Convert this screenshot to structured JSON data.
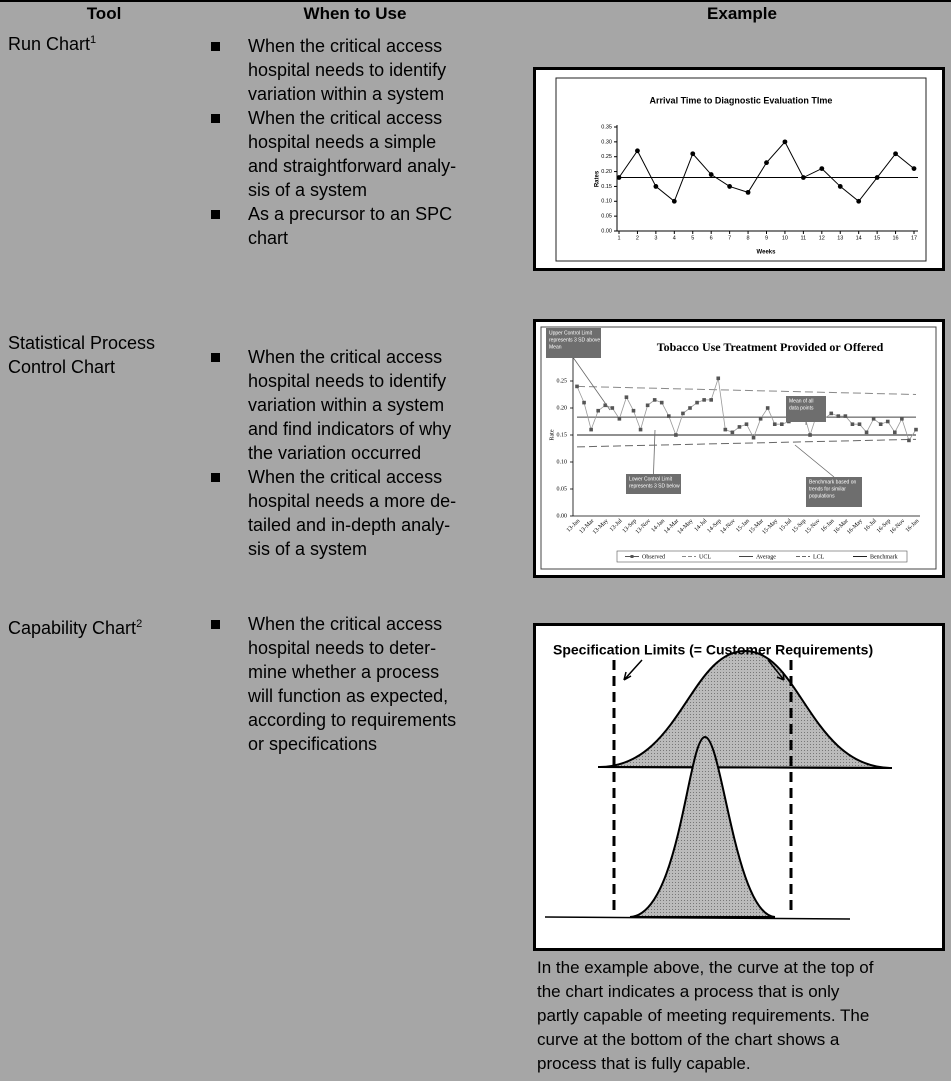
{
  "table": {
    "header": [
      "Tool",
      "When to Use",
      "Example"
    ],
    "rows": [
      {
        "tool": [
          "Run Chart"
        ],
        "note": "1",
        "bullets": [
          [
            "When the critical access",
            "hospital needs to identify",
            "variation within a system"
          ],
          [
            "When the critical access",
            "hospital needs a simple",
            "and straightforward analy-",
            "sis of a system"
          ],
          [
            "As a precursor to an SPC",
            "chart"
          ]
        ]
      },
      {
        "tool": [
          "Statistical Process",
          "Control Chart"
        ],
        "bullets": [
          [
            "When the critical access",
            "hospital needs to identify",
            "variation within a system",
            "and find indicators of why",
            "the variation occurred"
          ],
          [
            "When the critical access",
            "hospital needs a more de-",
            "tailed and in-depth analy-",
            "sis of a system"
          ]
        ]
      },
      {
        "tool": [
          "Capability Chart"
        ],
        "note": "2",
        "bullets": [
          [
            "When the critical access",
            "hospital needs to deter-",
            "mine whether a process",
            "will function as expected,",
            "according to requirements",
            "or specifications"
          ]
        ],
        "figure_title": "Specification Limits (= Customer Requirements)",
        "caption": [
          "In the example above, the curve at the top of",
          "the chart indicates a process that is only",
          "partly capable of meeting requirements. The",
          "curve at the bottom of the chart shows a",
          "process that is fully capable."
        ]
      }
    ]
  },
  "chart_data": [
    {
      "type": "line",
      "title": "Arrival Time to Diagnostic Evaluation TIme",
      "x_label": "Weeks",
      "y_label": "Rates",
      "x": [
        1,
        2,
        3,
        4,
        5,
        6,
        7,
        8,
        9,
        10,
        11,
        12,
        13,
        14,
        15,
        16,
        17
      ],
      "values": [
        0.18,
        0.27,
        0.15,
        0.1,
        0.26,
        0.19,
        0.15,
        0.13,
        0.23,
        0.3,
        0.18,
        0.21,
        0.15,
        0.1,
        0.18,
        0.26,
        0.21
      ],
      "color": "#000000",
      "center_line": 0.18,
      "xlim": [
        1,
        17
      ],
      "xticks": [
        1,
        2,
        3,
        4,
        5,
        6,
        7,
        8,
        9,
        10,
        11,
        12,
        13,
        14,
        15,
        16,
        17
      ],
      "ylim": [
        0,
        0.35
      ],
      "yticks": [
        {
          "value": 0,
          "label": "0.00"
        },
        {
          "value": 0.05,
          "label": "0.05"
        },
        {
          "value": 0.1,
          "label": "0.10"
        },
        {
          "value": 0.15,
          "label": "0.15"
        },
        {
          "value": 0.2,
          "label": "0.20"
        },
        {
          "value": 0.25,
          "label": "0.25"
        },
        {
          "value": 0.3,
          "label": "0.30"
        },
        {
          "value": 0.35,
          "label": "0.35"
        }
      ]
    },
    {
      "type": "control",
      "title": "Tobacco Use Treatment Provided or Offered",
      "y_label": "Rate",
      "categories": [
        "13-Jan",
        null,
        "13-Mar",
        null,
        "13-May",
        null,
        "13-Jul",
        null,
        "13-Sep",
        null,
        "13-Nov",
        null,
        "14-Jan",
        null,
        "14-Mar",
        null,
        "14-May",
        null,
        "14-Jul",
        null,
        "14-Sep",
        null,
        "14-Nov",
        null,
        "15-Jan",
        null,
        "15-Mar",
        null,
        "15-May",
        null,
        "15-Jul",
        null,
        "15-Sep",
        null,
        "15-Nov",
        null,
        "16-Jan",
        null,
        "16-Mar",
        null,
        "16-May",
        null,
        "16-Jul",
        null,
        "16-Sep",
        null,
        "16-Nov",
        null,
        "16-Jan"
      ],
      "series": [
        {
          "name": "Observed",
          "color": "#555555",
          "values": [
            0.24,
            0.21,
            0.16,
            0.195,
            0.205,
            0.2,
            0.18,
            0.22,
            0.195,
            0.16,
            0.205,
            0.215,
            0.21,
            0.185,
            0.15,
            0.19,
            0.2,
            0.21,
            0.215,
            0.215,
            0.255,
            0.16,
            0.155,
            0.165,
            0.17,
            0.145,
            0.18,
            0.2,
            0.17,
            0.17,
            0.175,
            0.205,
            0.195,
            0.15,
            0.19,
            0.18,
            0.19,
            0.185,
            0.185,
            0.17,
            0.17,
            0.155,
            0.18,
            0.17,
            0.175,
            0.155,
            0.18,
            0.14,
            0.16
          ]
        }
      ],
      "limits": [
        {
          "name": "UCL",
          "values": [
            0.24,
            0.225
          ],
          "dashed": true
        },
        {
          "name": "Average",
          "values": [
            0.183,
            0.183
          ],
          "dashed": false
        },
        {
          "name": "LCL",
          "values": [
            0.128,
            0.142
          ],
          "dashed": true
        },
        {
          "name": "Benchmark",
          "values": [
            0.15,
            0.15
          ],
          "dashed": false
        }
      ],
      "ylim": [
        0,
        0.3
      ],
      "yticks": [
        {
          "value": 0,
          "label": "0.00"
        },
        {
          "value": 0.05,
          "label": "0.05"
        },
        {
          "value": 0.1,
          "label": "0.10"
        },
        {
          "value": 0.15,
          "label": "0.15"
        },
        {
          "value": 0.2,
          "label": "0.20"
        },
        {
          "value": 0.25,
          "label": "0.25"
        },
        {
          "value": 0.3,
          "label": "0.30"
        }
      ],
      "annotations": [
        [
          "Upper Control Limit",
          "represents 3 SD above",
          "Mean"
        ],
        [
          "Mean of all",
          "data points"
        ],
        [
          "Lower Control Limit",
          "represents 3 SD below"
        ],
        [
          "Benchmark based on",
          "trends for similar",
          "populations"
        ]
      ]
    }
  ]
}
